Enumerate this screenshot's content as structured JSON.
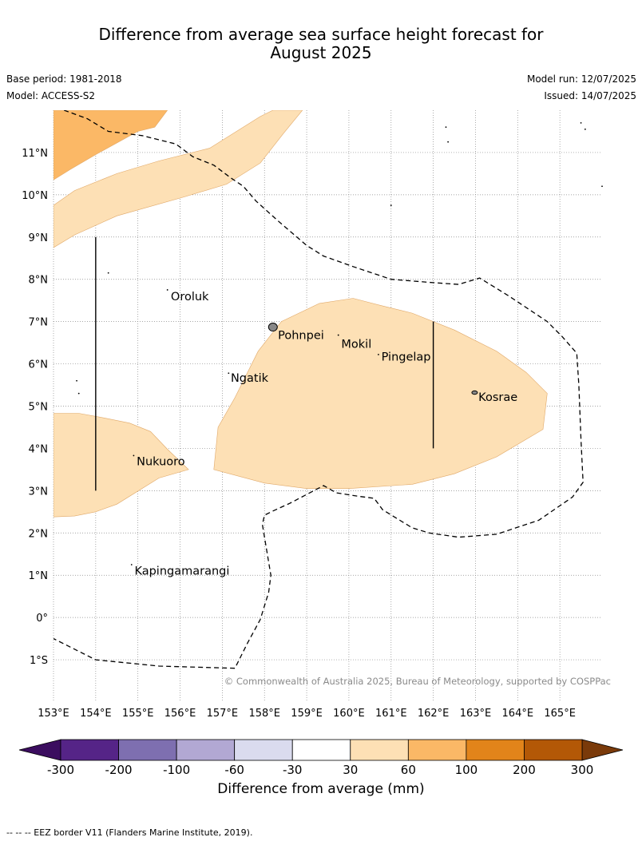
{
  "header": {
    "title_line1": "Difference from average sea surface height forecast for",
    "title_line2": "August 2025",
    "base_period": "Base period: 1981-2018",
    "model": "Model: ACCESS-S2",
    "model_run": "Model run: 12/07/2025",
    "issued": "Issued: 14/07/2025"
  },
  "map": {
    "lon_range": [
      153,
      166
    ],
    "lat_range": [
      -2,
      12
    ],
    "lon_ticks": [
      {
        "v": 153,
        "label": "153°E"
      },
      {
        "v": 154,
        "label": "154°E"
      },
      {
        "v": 155,
        "label": "155°E"
      },
      {
        "v": 156,
        "label": "156°E"
      },
      {
        "v": 157,
        "label": "157°E"
      },
      {
        "v": 158,
        "label": "158°E"
      },
      {
        "v": 159,
        "label": "159°E"
      },
      {
        "v": 160,
        "label": "160°E"
      },
      {
        "v": 161,
        "label": "161°E"
      },
      {
        "v": 162,
        "label": "162°E"
      },
      {
        "v": 163,
        "label": "163°E"
      },
      {
        "v": 164,
        "label": "164°E"
      },
      {
        "v": 165,
        "label": "165°E"
      }
    ],
    "lat_ticks": [
      {
        "v": 11,
        "label": "11°N"
      },
      {
        "v": 10,
        "label": "10°N"
      },
      {
        "v": 9,
        "label": "9°N"
      },
      {
        "v": 8,
        "label": "8°N"
      },
      {
        "v": 7,
        "label": "7°N"
      },
      {
        "v": 6,
        "label": "6°N"
      },
      {
        "v": 5,
        "label": "5°N"
      },
      {
        "v": 4,
        "label": "4°N"
      },
      {
        "v": 3,
        "label": "3°N"
      },
      {
        "v": 2,
        "label": "2°N"
      },
      {
        "v": 1,
        "label": "1°N"
      },
      {
        "v": 0,
        "label": "0°"
      },
      {
        "v": -1,
        "label": "1°S"
      }
    ],
    "islands": [
      {
        "name": "Oroluk",
        "lon": 155.7,
        "lat": 7.75,
        "label_lon": 155.78,
        "label_lat": 7.6
      },
      {
        "name": "Pohnpei",
        "lon": 158.2,
        "lat": 6.87,
        "label_lon": 158.32,
        "label_lat": 6.68
      },
      {
        "name": "Mokil",
        "lon": 159.75,
        "lat": 6.68,
        "label_lon": 159.82,
        "label_lat": 6.47
      },
      {
        "name": "Pingelap",
        "lon": 160.7,
        "lat": 6.22,
        "label_lon": 160.77,
        "label_lat": 6.17
      },
      {
        "name": "Ngatik",
        "lon": 157.15,
        "lat": 5.78,
        "label_lon": 157.2,
        "label_lat": 5.67
      },
      {
        "name": "Kosrae",
        "lon": 162.98,
        "lat": 5.32,
        "label_lon": 163.07,
        "label_lat": 5.22
      },
      {
        "name": "Nukuoro",
        "lon": 154.9,
        "lat": 3.83,
        "label_lon": 154.97,
        "label_lat": 3.7
      },
      {
        "name": "Kapingamarangi",
        "lon": 154.85,
        "lat": 1.25,
        "label_lon": 154.92,
        "label_lat": 1.11
      }
    ],
    "copyright": "© Commonwealth of Australia 2025, Bureau of Meteorology, supported by COSPPac",
    "colors": {
      "anomaly_30_60": "#fde0b5",
      "anomaly_60_100": "#fbb866",
      "eez_border": "#000000",
      "gridline": "#888888"
    },
    "anomaly_regions": [
      {
        "band": "30 to 60 mm",
        "color": "#fde0b5",
        "coords": [
          [
            153,
            9.75
          ],
          [
            153.5,
            10.1
          ],
          [
            154.5,
            10.5
          ],
          [
            155.5,
            10.8
          ],
          [
            156.7,
            11.1
          ],
          [
            157.9,
            11.85
          ],
          [
            158.2,
            12
          ],
          [
            158.9,
            12
          ],
          [
            158.45,
            11.45
          ],
          [
            157.9,
            10.75
          ],
          [
            157.1,
            10.25
          ],
          [
            156.1,
            9.95
          ],
          [
            154.5,
            9.5
          ],
          [
            153.5,
            9.05
          ],
          [
            153,
            8.75
          ]
        ]
      },
      {
        "band": "60 to 100 mm",
        "color": "#fbb866",
        "coords": [
          [
            153,
            10.35
          ],
          [
            153.4,
            10.6
          ],
          [
            154,
            10.95
          ],
          [
            155,
            11.5
          ],
          [
            155.4,
            11.6
          ],
          [
            155.7,
            12
          ],
          [
            153,
            12
          ]
        ]
      },
      {
        "band": "30 to 60 mm",
        "color": "#fde0b5",
        "coords": [
          [
            156.8,
            3.5
          ],
          [
            156.9,
            4.5
          ],
          [
            157.3,
            5.2
          ],
          [
            157.85,
            6.3
          ],
          [
            158.4,
            7
          ],
          [
            159.3,
            7.43
          ],
          [
            160.1,
            7.55
          ],
          [
            160.8,
            7.37
          ],
          [
            161.5,
            7.2
          ],
          [
            162.5,
            6.8
          ],
          [
            163.5,
            6.3
          ],
          [
            164.2,
            5.8
          ],
          [
            164.7,
            5.3
          ],
          [
            164.6,
            4.45
          ],
          [
            163.5,
            3.8
          ],
          [
            162.5,
            3.4
          ],
          [
            161.5,
            3.15
          ],
          [
            160,
            3.05
          ],
          [
            159,
            3.05
          ],
          [
            158,
            3.18
          ]
        ]
      },
      {
        "band": "30 to 60 mm",
        "color": "#fde0b5",
        "coords": [
          [
            153,
            2.38
          ],
          [
            153.5,
            2.4
          ],
          [
            154,
            2.5
          ],
          [
            154.5,
            2.68
          ],
          [
            155.5,
            3.3
          ],
          [
            156.2,
            3.5
          ],
          [
            155.7,
            3.98
          ],
          [
            155.3,
            4.4
          ],
          [
            154.8,
            4.6
          ],
          [
            154.2,
            4.72
          ],
          [
            153.6,
            4.83
          ],
          [
            153,
            4.83
          ]
        ]
      }
    ],
    "eez_lines": [
      [
        [
          153.25,
          12
        ],
        [
          153.8,
          11.8
        ],
        [
          154.3,
          11.5
        ],
        [
          155.1,
          11.4
        ],
        [
          155.9,
          11.2
        ],
        [
          156.3,
          10.9
        ],
        [
          156.8,
          10.7
        ],
        [
          157.2,
          10.4
        ],
        [
          157.5,
          10.2
        ],
        [
          157.8,
          9.85
        ],
        [
          158.3,
          9.4
        ],
        [
          159,
          8.8
        ],
        [
          159.4,
          8.55
        ],
        [
          160.1,
          8.3
        ],
        [
          161,
          8
        ],
        [
          162,
          7.92
        ],
        [
          162.6,
          7.88
        ],
        [
          163.1,
          8.03
        ],
        [
          163.8,
          7.6
        ],
        [
          164.7,
          7
        ],
        [
          165.05,
          6.65
        ],
        [
          165.4,
          6.25
        ],
        [
          165.45,
          5.5
        ],
        [
          165.5,
          4.2
        ],
        [
          165.55,
          3.2
        ],
        [
          165.3,
          2.85
        ],
        [
          164.5,
          2.3
        ],
        [
          163.5,
          1.97
        ],
        [
          162.6,
          1.9
        ],
        [
          161.9,
          2
        ],
        [
          161.5,
          2.12
        ],
        [
          160.8,
          2.55
        ],
        [
          160.6,
          2.82
        ],
        [
          160.2,
          2.87
        ],
        [
          159.7,
          2.95
        ],
        [
          159.4,
          3.12
        ],
        [
          158.6,
          2.7
        ],
        [
          158.2,
          2.52
        ],
        [
          158,
          2.42
        ],
        [
          157.95,
          2.2
        ],
        [
          158.05,
          1.6
        ],
        [
          158.15,
          1
        ],
        [
          158.1,
          0.6
        ],
        [
          157.9,
          -0.05
        ],
        [
          157.6,
          -0.6
        ],
        [
          157.3,
          -1.2
        ],
        [
          155.5,
          -1.15
        ],
        [
          154,
          -1
        ],
        [
          153,
          -0.5
        ]
      ]
    ],
    "meridian_lines": [
      {
        "lon": 154,
        "lat_from": 9,
        "lat_to": 3
      },
      {
        "lon": 162,
        "lat_from": 7,
        "lat_to": 4
      }
    ]
  },
  "colorbar": {
    "label": "Difference from average (mm)",
    "ticks": [
      "-300",
      "-200",
      "-100",
      "-60",
      "-30",
      "30",
      "60",
      "100",
      "200",
      "300"
    ],
    "under_color": "#3b0d5f",
    "over_color": "#7a3a0a",
    "colors": [
      "#552487",
      "#7e6fb0",
      "#b2a8d3",
      "#dadbee",
      "#ffffff",
      "#fde0b5",
      "#fbb866",
      "#e2841a",
      "#b35806"
    ]
  },
  "footnote": "--  --  -- EEZ border V11 (Flanders Marine Institute, 2019)."
}
